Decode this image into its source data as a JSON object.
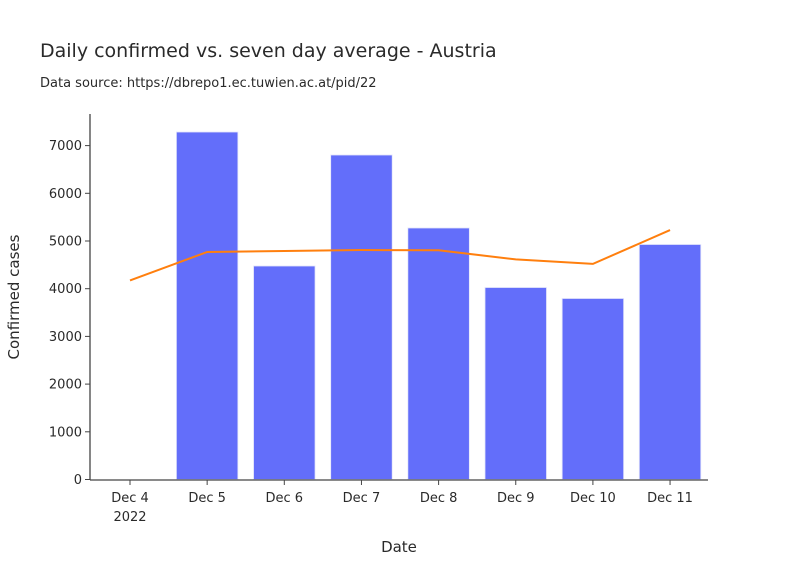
{
  "chart_data": {
    "type": "bar",
    "title": "Daily confirmed vs. seven day average - Austria",
    "subtitle": "Data source: https://dbrepo1.ec.tuwien.ac.at/pid/22",
    "xlabel": "Date",
    "ylabel": "Confirmed cases",
    "categories": [
      "Dec 4",
      "Dec 5",
      "Dec 6",
      "Dec 7",
      "Dec 8",
      "Dec 9",
      "Dec 10",
      "Dec 11"
    ],
    "x_tick_sublabel": "2022",
    "ylim": [
      0,
      7650
    ],
    "y_ticks": [
      0,
      1000,
      2000,
      3000,
      4000,
      5000,
      6000,
      7000
    ],
    "grid": false,
    "legend": null,
    "series": [
      {
        "name": "Daily confirmed",
        "type": "bar",
        "color": "#636efa",
        "values": [
          null,
          7285,
          4476,
          6803,
          5273,
          4025,
          3795,
          4927
        ]
      },
      {
        "name": "Seven day average",
        "type": "line",
        "color": "#ff7f0e",
        "values": [
          4172,
          4770,
          4790,
          4811,
          4805,
          4615,
          4520,
          5230
        ]
      }
    ]
  }
}
